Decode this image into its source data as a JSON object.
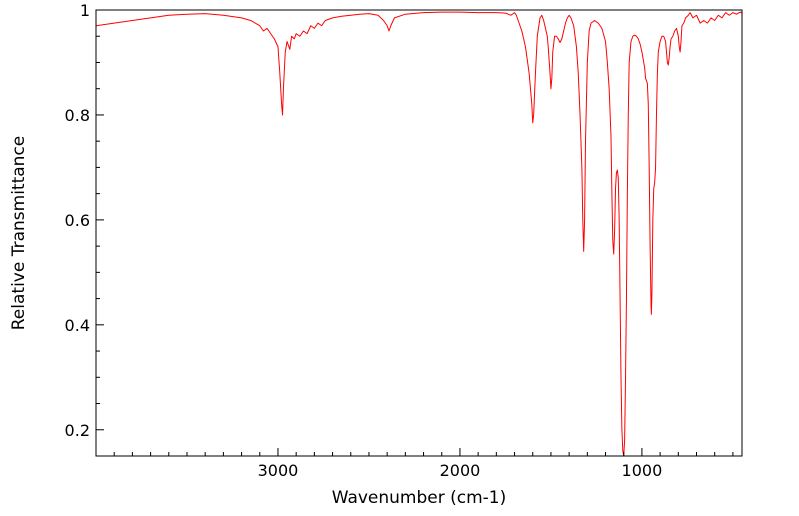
{
  "chart_data": {
    "type": "line",
    "title": "",
    "xlabel": "Wavenumber (cm-1)",
    "ylabel": "Relative Transmittance",
    "xlim": [
      4000,
      450
    ],
    "ylim": [
      0.15,
      1.0
    ],
    "x_reversed": true,
    "grid": false,
    "legend": "none",
    "x_ticks": [
      3000,
      2000,
      1000
    ],
    "x_tick_labels": [
      "3000",
      "2000",
      "1000"
    ],
    "y_ticks": [
      0.2,
      0.4,
      0.6,
      0.8,
      1.0
    ],
    "y_tick_labels": [
      "0.2",
      "0.4",
      "0.6",
      "0.8",
      "1"
    ],
    "series": [
      {
        "color": "#ff0000",
        "points": [
          [
            4000,
            0.97
          ],
          [
            3900,
            0.975
          ],
          [
            3800,
            0.98
          ],
          [
            3700,
            0.985
          ],
          [
            3600,
            0.99
          ],
          [
            3500,
            0.992
          ],
          [
            3400,
            0.993
          ],
          [
            3300,
            0.99
          ],
          [
            3200,
            0.985
          ],
          [
            3150,
            0.98
          ],
          [
            3100,
            0.97
          ],
          [
            3080,
            0.96
          ],
          [
            3060,
            0.965
          ],
          [
            3040,
            0.955
          ],
          [
            3020,
            0.945
          ],
          [
            3000,
            0.93
          ],
          [
            2990,
            0.88
          ],
          [
            2980,
            0.82
          ],
          [
            2975,
            0.8
          ],
          [
            2970,
            0.85
          ],
          [
            2960,
            0.92
          ],
          [
            2950,
            0.94
          ],
          [
            2935,
            0.925
          ],
          [
            2925,
            0.95
          ],
          [
            2910,
            0.945
          ],
          [
            2900,
            0.955
          ],
          [
            2880,
            0.95
          ],
          [
            2860,
            0.96
          ],
          [
            2840,
            0.955
          ],
          [
            2820,
            0.97
          ],
          [
            2800,
            0.965
          ],
          [
            2780,
            0.975
          ],
          [
            2760,
            0.97
          ],
          [
            2740,
            0.98
          ],
          [
            2700,
            0.985
          ],
          [
            2650,
            0.988
          ],
          [
            2600,
            0.99
          ],
          [
            2550,
            0.992
          ],
          [
            2500,
            0.993
          ],
          [
            2450,
            0.99
          ],
          [
            2420,
            0.98
          ],
          [
            2400,
            0.97
          ],
          [
            2390,
            0.96
          ],
          [
            2380,
            0.97
          ],
          [
            2360,
            0.985
          ],
          [
            2300,
            0.992
          ],
          [
            2200,
            0.995
          ],
          [
            2100,
            0.996
          ],
          [
            2000,
            0.996
          ],
          [
            1900,
            0.995
          ],
          [
            1800,
            0.995
          ],
          [
            1750,
            0.994
          ],
          [
            1720,
            0.99
          ],
          [
            1700,
            0.995
          ],
          [
            1690,
            0.99
          ],
          [
            1680,
            0.98
          ],
          [
            1660,
            0.96
          ],
          [
            1640,
            0.93
          ],
          [
            1620,
            0.88
          ],
          [
            1605,
            0.82
          ],
          [
            1600,
            0.785
          ],
          [
            1595,
            0.8
          ],
          [
            1585,
            0.88
          ],
          [
            1575,
            0.95
          ],
          [
            1560,
            0.985
          ],
          [
            1550,
            0.99
          ],
          [
            1540,
            0.98
          ],
          [
            1520,
            0.95
          ],
          [
            1515,
            0.93
          ],
          [
            1505,
            0.88
          ],
          [
            1500,
            0.85
          ],
          [
            1495,
            0.87
          ],
          [
            1490,
            0.92
          ],
          [
            1480,
            0.95
          ],
          [
            1470,
            0.95
          ],
          [
            1460,
            0.945
          ],
          [
            1450,
            0.938
          ],
          [
            1440,
            0.945
          ],
          [
            1430,
            0.96
          ],
          [
            1420,
            0.975
          ],
          [
            1410,
            0.985
          ],
          [
            1400,
            0.99
          ],
          [
            1390,
            0.985
          ],
          [
            1375,
            0.97
          ],
          [
            1360,
            0.93
          ],
          [
            1350,
            0.88
          ],
          [
            1340,
            0.8
          ],
          [
            1330,
            0.7
          ],
          [
            1325,
            0.6
          ],
          [
            1320,
            0.54
          ],
          [
            1315,
            0.6
          ],
          [
            1310,
            0.75
          ],
          [
            1300,
            0.9
          ],
          [
            1290,
            0.96
          ],
          [
            1280,
            0.975
          ],
          [
            1260,
            0.98
          ],
          [
            1240,
            0.975
          ],
          [
            1220,
            0.965
          ],
          [
            1200,
            0.94
          ],
          [
            1190,
            0.9
          ],
          [
            1180,
            0.85
          ],
          [
            1170,
            0.76
          ],
          [
            1165,
            0.65
          ],
          [
            1160,
            0.56
          ],
          [
            1155,
            0.535
          ],
          [
            1150,
            0.58
          ],
          [
            1145,
            0.66
          ],
          [
            1140,
            0.69
          ],
          [
            1135,
            0.695
          ],
          [
            1130,
            0.68
          ],
          [
            1125,
            0.6
          ],
          [
            1120,
            0.45
          ],
          [
            1115,
            0.3
          ],
          [
            1110,
            0.2
          ],
          [
            1105,
            0.16
          ],
          [
            1100,
            0.15
          ],
          [
            1095,
            0.18
          ],
          [
            1090,
            0.3
          ],
          [
            1085,
            0.45
          ],
          [
            1080,
            0.65
          ],
          [
            1075,
            0.8
          ],
          [
            1070,
            0.9
          ],
          [
            1060,
            0.94
          ],
          [
            1050,
            0.95
          ],
          [
            1040,
            0.952
          ],
          [
            1030,
            0.95
          ],
          [
            1020,
            0.945
          ],
          [
            1010,
            0.935
          ],
          [
            1000,
            0.92
          ],
          [
            990,
            0.9
          ],
          [
            985,
            0.89
          ],
          [
            980,
            0.87
          ],
          [
            970,
            0.86
          ],
          [
            965,
            0.82
          ],
          [
            960,
            0.7
          ],
          [
            955,
            0.55
          ],
          [
            950,
            0.44
          ],
          [
            948,
            0.42
          ],
          [
            945,
            0.46
          ],
          [
            940,
            0.6
          ],
          [
            935,
            0.66
          ],
          [
            930,
            0.67
          ],
          [
            925,
            0.7
          ],
          [
            920,
            0.8
          ],
          [
            915,
            0.88
          ],
          [
            910,
            0.92
          ],
          [
            900,
            0.94
          ],
          [
            890,
            0.95
          ],
          [
            880,
            0.95
          ],
          [
            870,
            0.94
          ],
          [
            865,
            0.92
          ],
          [
            860,
            0.9
          ],
          [
            855,
            0.895
          ],
          [
            850,
            0.91
          ],
          [
            845,
            0.93
          ],
          [
            840,
            0.945
          ],
          [
            830,
            0.95
          ],
          [
            820,
            0.96
          ],
          [
            810,
            0.965
          ],
          [
            800,
            0.95
          ],
          [
            795,
            0.93
          ],
          [
            790,
            0.92
          ],
          [
            785,
            0.94
          ],
          [
            780,
            0.97
          ],
          [
            770,
            0.975
          ],
          [
            760,
            0.985
          ],
          [
            745,
            0.99
          ],
          [
            735,
            0.995
          ],
          [
            720,
            0.985
          ],
          [
            700,
            0.99
          ],
          [
            680,
            0.975
          ],
          [
            660,
            0.98
          ],
          [
            640,
            0.975
          ],
          [
            620,
            0.985
          ],
          [
            600,
            0.98
          ],
          [
            580,
            0.99
          ],
          [
            560,
            0.985
          ],
          [
            540,
            0.995
          ],
          [
            520,
            0.99
          ],
          [
            500,
            0.995
          ],
          [
            480,
            0.992
          ],
          [
            460,
            0.996
          ],
          [
            450,
            0.994
          ]
        ]
      }
    ]
  }
}
